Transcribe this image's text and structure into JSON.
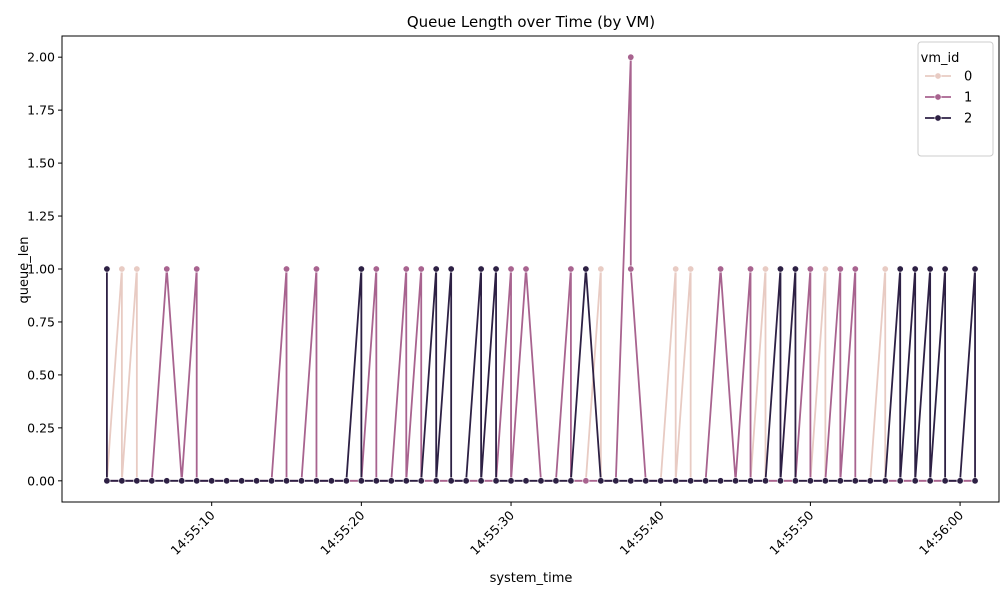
{
  "chart_data": {
    "type": "line",
    "title": "Queue Length over Time (by VM)",
    "xlabel": "system_time",
    "ylabel": "queue_len",
    "x_ticks": [
      "14:55:10",
      "14:55:20",
      "14:55:30",
      "14:55:40",
      "14:55:50",
      "14:56:00"
    ],
    "y_ticks": [
      "0.00",
      "0.25",
      "0.50",
      "0.75",
      "1.00",
      "1.25",
      "1.50",
      "1.75",
      "2.00"
    ],
    "xlim": [
      "14:55:00.0",
      "14:56:02.6"
    ],
    "ylim": [
      -0.1,
      2.1
    ],
    "grid": false,
    "legend": {
      "title": "vm_id",
      "placement": "top-right"
    },
    "series": [
      {
        "name": "0",
        "color": "#e8cbc3",
        "points": [
          [
            "14:55:03",
            0
          ],
          [
            "14:55:04",
            1
          ],
          [
            "14:55:04",
            0
          ],
          [
            "14:55:05",
            1
          ],
          [
            "14:55:05",
            0
          ],
          [
            "14:55:06",
            0
          ],
          [
            "14:55:07",
            0
          ],
          [
            "14:55:08",
            0
          ],
          [
            "14:55:09",
            0
          ],
          [
            "14:55:10",
            0
          ],
          [
            "14:55:11",
            0
          ],
          [
            "14:55:12",
            0
          ],
          [
            "14:55:13",
            0
          ],
          [
            "14:55:14",
            0
          ],
          [
            "14:55:15",
            0
          ],
          [
            "14:55:16",
            0
          ],
          [
            "14:55:17",
            0
          ],
          [
            "14:55:18",
            0
          ],
          [
            "14:55:19",
            0
          ],
          [
            "14:55:20",
            0
          ],
          [
            "14:55:21",
            0
          ],
          [
            "14:55:22",
            0
          ],
          [
            "14:55:23",
            0
          ],
          [
            "14:55:24",
            0
          ],
          [
            "14:55:25",
            0
          ],
          [
            "14:55:26",
            0
          ],
          [
            "14:55:27",
            0
          ],
          [
            "14:55:28",
            0
          ],
          [
            "14:55:29",
            0
          ],
          [
            "14:55:30",
            0
          ],
          [
            "14:55:31",
            0
          ],
          [
            "14:55:32",
            0
          ],
          [
            "14:55:33",
            0
          ],
          [
            "14:55:34",
            0
          ],
          [
            "14:55:35",
            0
          ],
          [
            "14:55:36",
            1
          ],
          [
            "14:55:36",
            0
          ],
          [
            "14:55:37",
            0
          ],
          [
            "14:55:38",
            0
          ],
          [
            "14:55:39",
            0
          ],
          [
            "14:55:40",
            0
          ],
          [
            "14:55:41",
            1
          ],
          [
            "14:55:41",
            0
          ],
          [
            "14:55:42",
            1
          ],
          [
            "14:55:42",
            0
          ],
          [
            "14:55:43",
            0
          ],
          [
            "14:55:44",
            0
          ],
          [
            "14:55:45",
            0
          ],
          [
            "14:55:46",
            0
          ],
          [
            "14:55:47",
            1
          ],
          [
            "14:55:47",
            0
          ],
          [
            "14:55:48",
            0
          ],
          [
            "14:55:49",
            0
          ],
          [
            "14:55:50",
            0
          ],
          [
            "14:55:51",
            1
          ],
          [
            "14:55:51",
            0
          ],
          [
            "14:55:52",
            0
          ],
          [
            "14:55:53",
            0
          ],
          [
            "14:55:54",
            0
          ],
          [
            "14:55:55",
            1
          ],
          [
            "14:55:55",
            0
          ],
          [
            "14:55:56",
            0
          ],
          [
            "14:55:57",
            0
          ],
          [
            "14:55:58",
            0
          ],
          [
            "14:55:59",
            0
          ],
          [
            "14:56:00",
            0
          ],
          [
            "14:56:01",
            0
          ]
        ]
      },
      {
        "name": "1",
        "color": "#a8638f",
        "points": [
          [
            "14:55:03",
            0
          ],
          [
            "14:55:04",
            0
          ],
          [
            "14:55:05",
            0
          ],
          [
            "14:55:06",
            0
          ],
          [
            "14:55:07",
            1
          ],
          [
            "14:55:08",
            0
          ],
          [
            "14:55:09",
            1
          ],
          [
            "14:55:09",
            0
          ],
          [
            "14:55:10",
            0
          ],
          [
            "14:55:11",
            0
          ],
          [
            "14:55:12",
            0
          ],
          [
            "14:55:13",
            0
          ],
          [
            "14:55:14",
            0
          ],
          [
            "14:55:15",
            1
          ],
          [
            "14:55:15",
            0
          ],
          [
            "14:55:16",
            0
          ],
          [
            "14:55:17",
            1
          ],
          [
            "14:55:17",
            0
          ],
          [
            "14:55:18",
            0
          ],
          [
            "14:55:19",
            0
          ],
          [
            "14:55:20",
            0
          ],
          [
            "14:55:21",
            1
          ],
          [
            "14:55:21",
            0
          ],
          [
            "14:55:22",
            0
          ],
          [
            "14:55:23",
            1
          ],
          [
            "14:55:23",
            0
          ],
          [
            "14:55:24",
            1
          ],
          [
            "14:55:24",
            0
          ],
          [
            "14:55:25",
            0
          ],
          [
            "14:55:26",
            0
          ],
          [
            "14:55:27",
            0
          ],
          [
            "14:55:28",
            0
          ],
          [
            "14:55:29",
            0
          ],
          [
            "14:55:30",
            1
          ],
          [
            "14:55:30",
            0
          ],
          [
            "14:55:31",
            1
          ],
          [
            "14:55:32",
            0
          ],
          [
            "14:55:33",
            0
          ],
          [
            "14:55:34",
            1
          ],
          [
            "14:55:34",
            0
          ],
          [
            "14:55:35",
            0
          ],
          [
            "14:55:36",
            0
          ],
          [
            "14:55:37",
            0
          ],
          [
            "14:55:38",
            2
          ],
          [
            "14:55:38",
            1
          ],
          [
            "14:55:39",
            0
          ],
          [
            "14:55:40",
            0
          ],
          [
            "14:55:41",
            0
          ],
          [
            "14:55:42",
            0
          ],
          [
            "14:55:43",
            0
          ],
          [
            "14:55:44",
            1
          ],
          [
            "14:55:45",
            0
          ],
          [
            "14:55:46",
            1
          ],
          [
            "14:55:46",
            0
          ],
          [
            "14:55:47",
            0
          ],
          [
            "14:55:48",
            0
          ],
          [
            "14:55:49",
            0
          ],
          [
            "14:55:50",
            1
          ],
          [
            "14:55:50",
            0
          ],
          [
            "14:55:51",
            0
          ],
          [
            "14:55:52",
            1
          ],
          [
            "14:55:52",
            0
          ],
          [
            "14:55:53",
            1
          ],
          [
            "14:55:53",
            0
          ],
          [
            "14:55:54",
            0
          ],
          [
            "14:55:55",
            0
          ],
          [
            "14:55:56",
            0
          ],
          [
            "14:55:57",
            0
          ],
          [
            "14:55:58",
            0
          ],
          [
            "14:55:59",
            0
          ],
          [
            "14:56:00",
            0
          ],
          [
            "14:56:01",
            0
          ]
        ]
      },
      {
        "name": "2",
        "color": "#2d2044",
        "points": [
          [
            "14:55:03",
            1
          ],
          [
            "14:55:03",
            0
          ],
          [
            "14:55:04",
            0
          ],
          [
            "14:55:05",
            0
          ],
          [
            "14:55:06",
            0
          ],
          [
            "14:55:07",
            0
          ],
          [
            "14:55:08",
            0
          ],
          [
            "14:55:09",
            0
          ],
          [
            "14:55:10",
            0
          ],
          [
            "14:55:11",
            0
          ],
          [
            "14:55:12",
            0
          ],
          [
            "14:55:13",
            0
          ],
          [
            "14:55:14",
            0
          ],
          [
            "14:55:15",
            0
          ],
          [
            "14:55:16",
            0
          ],
          [
            "14:55:17",
            0
          ],
          [
            "14:55:18",
            0
          ],
          [
            "14:55:19",
            0
          ],
          [
            "14:55:20",
            1
          ],
          [
            "14:55:20",
            0
          ],
          [
            "14:55:21",
            0
          ],
          [
            "14:55:22",
            0
          ],
          [
            "14:55:23",
            0
          ],
          [
            "14:55:24",
            0
          ],
          [
            "14:55:25",
            1
          ],
          [
            "14:55:25",
            0
          ],
          [
            "14:55:26",
            1
          ],
          [
            "14:55:26",
            0
          ],
          [
            "14:55:27",
            0
          ],
          [
            "14:55:28",
            1
          ],
          [
            "14:55:28",
            0
          ],
          [
            "14:55:29",
            1
          ],
          [
            "14:55:29",
            0
          ],
          [
            "14:55:30",
            0
          ],
          [
            "14:55:31",
            0
          ],
          [
            "14:55:32",
            0
          ],
          [
            "14:55:33",
            0
          ],
          [
            "14:55:34",
            0
          ],
          [
            "14:55:35",
            1
          ],
          [
            "14:55:36",
            0
          ],
          [
            "14:55:37",
            0
          ],
          [
            "14:55:38",
            0
          ],
          [
            "14:55:39",
            0
          ],
          [
            "14:55:40",
            0
          ],
          [
            "14:55:41",
            0
          ],
          [
            "14:55:42",
            0
          ],
          [
            "14:55:43",
            0
          ],
          [
            "14:55:44",
            0
          ],
          [
            "14:55:45",
            0
          ],
          [
            "14:55:46",
            0
          ],
          [
            "14:55:47",
            0
          ],
          [
            "14:55:48",
            1
          ],
          [
            "14:55:48",
            0
          ],
          [
            "14:55:49",
            1
          ],
          [
            "14:55:49",
            0
          ],
          [
            "14:55:50",
            0
          ],
          [
            "14:55:51",
            0
          ],
          [
            "14:55:52",
            0
          ],
          [
            "14:55:53",
            0
          ],
          [
            "14:55:54",
            0
          ],
          [
            "14:55:55",
            0
          ],
          [
            "14:55:56",
            1
          ],
          [
            "14:55:56",
            0
          ],
          [
            "14:55:57",
            1
          ],
          [
            "14:55:57",
            0
          ],
          [
            "14:55:58",
            1
          ],
          [
            "14:55:58",
            0
          ],
          [
            "14:55:59",
            1
          ],
          [
            "14:55:59",
            0
          ],
          [
            "14:56:00",
            0
          ],
          [
            "14:56:01",
            1
          ],
          [
            "14:56:01",
            0
          ]
        ]
      }
    ]
  }
}
